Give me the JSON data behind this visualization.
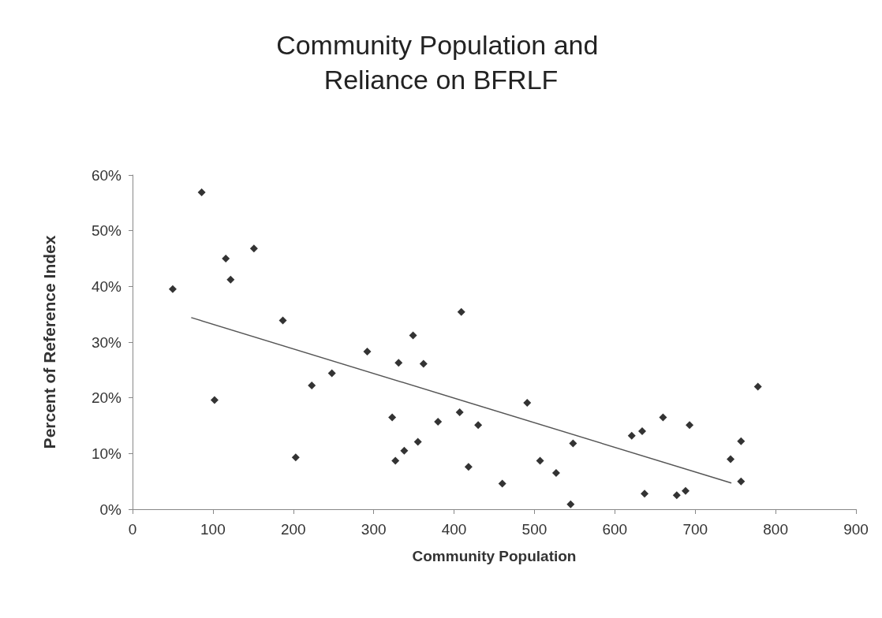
{
  "chart_data": {
    "type": "scatter",
    "title": "Community Population and Reliance on BFRLF",
    "xlabel": "Community Population",
    "ylabel": "Percent of Reference Index",
    "xlim": [
      0,
      900
    ],
    "xticks": [
      0,
      100,
      200,
      300,
      400,
      500,
      600,
      700,
      800,
      900
    ],
    "ylim": [
      0,
      60
    ],
    "yticks": [
      {
        "value": 0,
        "label": "0%"
      },
      {
        "value": 10,
        "label": "10%"
      },
      {
        "value": 20,
        "label": "20%"
      },
      {
        "value": 30,
        "label": "30%"
      },
      {
        "value": 40,
        "label": "40%"
      },
      {
        "value": 50,
        "label": "50%"
      },
      {
        "value": 60,
        "label": "60%"
      }
    ],
    "grid": false,
    "marker": "diamond",
    "series": [
      {
        "color": "#000000",
        "x": [
          50,
          86,
          116,
          122,
          151,
          102,
          187,
          203,
          223,
          248,
          292,
          323,
          331,
          327,
          338,
          349,
          355,
          362,
          380,
          409,
          407,
          430,
          418,
          460,
          491,
          507,
          527,
          548,
          545,
          621,
          634,
          637,
          660,
          677,
          688,
          693,
          744,
          757,
          757,
          778
        ],
        "values": [
          39.5,
          56.9,
          45.0,
          41.2,
          46.8,
          19.6,
          33.9,
          9.3,
          22.2,
          24.4,
          28.3,
          16.5,
          26.3,
          8.7,
          10.5,
          31.2,
          12.1,
          26.1,
          15.7,
          35.4,
          17.4,
          15.1,
          7.6,
          4.6,
          19.1,
          8.7,
          6.5,
          11.8,
          0.9,
          13.2,
          14.0,
          2.8,
          16.5,
          2.5,
          3.3,
          15.1,
          9.0,
          12.2,
          5.0,
          22.0
        ]
      },
      {
        "type": "line",
        "color": "#555555",
        "marker": "none",
        "x": [
          73,
          745
        ],
        "values": [
          34.4,
          4.7
        ]
      }
    ]
  }
}
